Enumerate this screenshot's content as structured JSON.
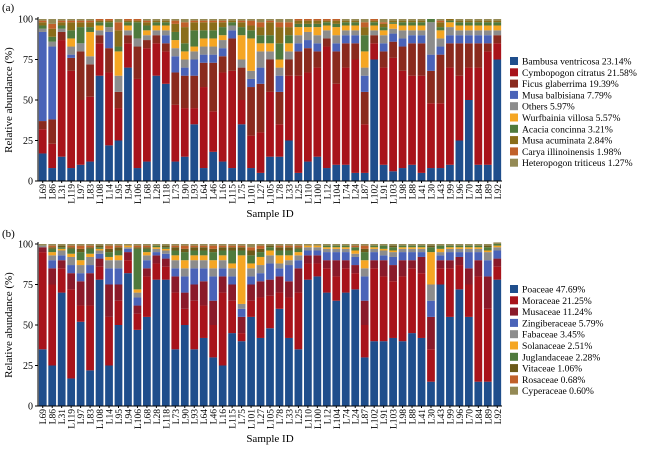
{
  "chart_data": [
    {
      "panel_label": "(a)",
      "type": "bar",
      "stacked": true,
      "xlabel": "Sample ID",
      "ylabel": "Relative abundance (%)",
      "ylim": [
        0,
        100
      ],
      "yticks": [
        0,
        25,
        50,
        75,
        100
      ],
      "legend_position": "right",
      "categories": [
        "L69",
        "L86",
        "L31",
        "L119",
        "L97",
        "L83",
        "L108",
        "L14",
        "L95",
        "L94",
        "L106",
        "L68",
        "L28",
        "L118",
        "L73",
        "L90",
        "L93",
        "L64",
        "L46",
        "L16",
        "L115",
        "L75",
        "L101",
        "L27",
        "L105",
        "L78",
        "L33",
        "L25",
        "L110",
        "L100",
        "L12",
        "L104",
        "L74",
        "L24",
        "L87",
        "L102",
        "L91",
        "L103",
        "L98",
        "L88",
        "L41",
        "L30",
        "L43",
        "L99",
        "L96",
        "L70",
        "L84",
        "L89",
        "L92"
      ],
      "series": [
        {
          "name": "Bambusa ventricosa 23.14%",
          "color": "#1f4e8c",
          "values": [
            17,
            8,
            15,
            8,
            10,
            12,
            65,
            22,
            25,
            70,
            8,
            12,
            65,
            60,
            12,
            15,
            35,
            8,
            18,
            12,
            8,
            35,
            8,
            5,
            15,
            15,
            25,
            5,
            12,
            15,
            8,
            10,
            10,
            5,
            5,
            75,
            10,
            6,
            8,
            10,
            5,
            8,
            8,
            10,
            25,
            50,
            10,
            10,
            75
          ]
        },
        {
          "name": "Cymbopogon citratus 21.58%",
          "color": "#a8131b",
          "values": [
            15,
            15,
            72,
            60,
            40,
            40,
            20,
            45,
            20,
            15,
            55,
            70,
            20,
            20,
            35,
            30,
            10,
            50,
            25,
            55,
            60,
            15,
            20,
            25,
            40,
            20,
            40,
            60,
            55,
            55,
            75,
            50,
            60,
            70,
            30,
            10,
            60,
            70,
            60,
            55,
            60,
            40,
            40,
            60,
            40,
            20,
            60,
            70,
            10
          ]
        },
        {
          "name": "Ficus glaberrima 19.39%",
          "color": "#8a2a1e",
          "values": [
            5,
            15,
            5,
            8,
            30,
            20,
            5,
            15,
            10,
            5,
            20,
            5,
            5,
            5,
            20,
            20,
            20,
            15,
            30,
            10,
            20,
            20,
            30,
            30,
            20,
            20,
            10,
            15,
            15,
            10,
            5,
            20,
            15,
            10,
            20,
            5,
            10,
            10,
            15,
            20,
            20,
            20,
            30,
            15,
            20,
            15,
            15,
            5,
            5
          ]
        },
        {
          "name": "Musa balbisiana 7.79%",
          "color": "#4a63b8",
          "values": [
            55,
            45,
            0,
            2,
            0,
            0,
            0,
            10,
            0,
            0,
            0,
            0,
            0,
            5,
            10,
            5,
            10,
            5,
            5,
            5,
            5,
            0,
            5,
            10,
            0,
            10,
            0,
            5,
            5,
            5,
            0,
            5,
            5,
            5,
            10,
            0,
            5,
            5,
            5,
            5,
            5,
            10,
            5,
            5,
            5,
            5,
            5,
            5,
            0
          ]
        },
        {
          "name": "Others 5.97%",
          "color": "#8c8c8c",
          "values": [
            2,
            3,
            2,
            5,
            5,
            5,
            3,
            3,
            10,
            3,
            5,
            3,
            3,
            3,
            5,
            5,
            5,
            5,
            5,
            5,
            3,
            5,
            5,
            10,
            5,
            5,
            5,
            5,
            5,
            5,
            5,
            5,
            3,
            3,
            5,
            3,
            5,
            3,
            5,
            3,
            3,
            20,
            5,
            5,
            3,
            3,
            3,
            3,
            3
          ]
        },
        {
          "name": "Wurfbainia villosa 5.57%",
          "color": "#f5a623",
          "values": [
            0,
            0,
            0,
            5,
            0,
            15,
            3,
            0,
            15,
            3,
            0,
            3,
            3,
            3,
            5,
            5,
            3,
            5,
            5,
            3,
            0,
            15,
            20,
            5,
            5,
            5,
            5,
            5,
            3,
            5,
            3,
            5,
            3,
            3,
            10,
            3,
            3,
            3,
            3,
            3,
            3,
            0,
            5,
            3,
            3,
            3,
            3,
            3,
            3
          ]
        },
        {
          "name": "Acacia concinna 3.21%",
          "color": "#4f7a3d",
          "values": [
            2,
            3,
            2,
            5,
            10,
            3,
            2,
            3,
            3,
            2,
            10,
            3,
            2,
            2,
            5,
            5,
            10,
            5,
            5,
            5,
            2,
            5,
            5,
            5,
            5,
            10,
            5,
            2,
            2,
            2,
            2,
            2,
            2,
            2,
            10,
            2,
            2,
            1,
            2,
            2,
            2,
            2,
            2,
            1,
            2,
            2,
            2,
            2,
            2
          ]
        },
        {
          "name": "Musa acuminata 2.84%",
          "color": "#8a6d1a",
          "values": [
            2,
            5,
            2,
            5,
            3,
            3,
            1,
            1,
            10,
            1,
            1,
            2,
            1,
            1,
            5,
            10,
            5,
            5,
            5,
            3,
            1,
            3,
            3,
            5,
            8,
            10,
            5,
            2,
            2,
            2,
            1,
            2,
            1,
            1,
            5,
            1,
            2,
            1,
            1,
            1,
            1,
            0,
            3,
            1,
            1,
            1,
            1,
            1,
            1
          ]
        },
        {
          "name": "Carya illinoinensis 1.98%",
          "color": "#c0602a",
          "values": [
            1,
            3,
            1,
            1,
            1,
            1,
            1,
            1,
            5,
            1,
            1,
            1,
            0,
            0,
            2,
            3,
            1,
            1,
            1,
            1,
            0,
            1,
            3,
            3,
            1,
            3,
            3,
            1,
            1,
            1,
            1,
            1,
            0,
            0,
            3,
            1,
            1,
            0,
            0,
            0,
            0,
            0,
            1,
            0,
            0,
            0,
            0,
            0,
            0
          ]
        },
        {
          "name": "Heteropogon triticeus 1.27%",
          "color": "#948a55",
          "values": [
            1,
            3,
            1,
            1,
            1,
            1,
            0,
            0,
            2,
            0,
            0,
            1,
            1,
            1,
            1,
            2,
            1,
            1,
            1,
            1,
            1,
            1,
            1,
            2,
            1,
            2,
            2,
            0,
            0,
            0,
            0,
            0,
            1,
            1,
            2,
            0,
            2,
            1,
            1,
            1,
            1,
            0,
            1,
            0,
            1,
            1,
            1,
            1,
            1
          ]
        }
      ]
    },
    {
      "panel_label": "(b)",
      "type": "bar",
      "stacked": true,
      "xlabel": "Sample ID",
      "ylabel": "Relative abundance (%)",
      "ylim": [
        0,
        100
      ],
      "yticks": [
        0,
        25,
        50,
        75,
        100
      ],
      "legend_position": "right",
      "categories": [
        "L69",
        "L86",
        "L31",
        "L119",
        "L97",
        "L83",
        "L108",
        "L14",
        "L95",
        "L94",
        "L106",
        "L68",
        "L28",
        "L118",
        "L73",
        "L90",
        "L93",
        "L64",
        "L46",
        "L16",
        "L115",
        "L75",
        "L101",
        "L27",
        "L105",
        "L78",
        "L33",
        "L25",
        "L110",
        "L100",
        "L12",
        "L104",
        "L74",
        "L24",
        "L87",
        "L102",
        "L91",
        "L103",
        "L98",
        "L88",
        "L41",
        "L30",
        "L43",
        "L99",
        "L96",
        "L70",
        "L84",
        "L89",
        "L92"
      ],
      "series": [
        {
          "name": "Poaceae 47.69%",
          "color": "#1f4e8c",
          "values": [
            35,
            25,
            70,
            17,
            52,
            22,
            78,
            25,
            50,
            82,
            47,
            55,
            78,
            78,
            35,
            50,
            35,
            42,
            30,
            25,
            45,
            40,
            55,
            42,
            48,
            60,
            42,
            35,
            78,
            80,
            70,
            65,
            70,
            72,
            30,
            40,
            40,
            42,
            40,
            45,
            42,
            15,
            75,
            55,
            72,
            55,
            15,
            15,
            78
          ]
        },
        {
          "name": "Moraceae 21.25%",
          "color": "#a8131b",
          "values": [
            60,
            50,
            15,
            55,
            10,
            40,
            8,
            30,
            15,
            8,
            10,
            25,
            10,
            8,
            35,
            10,
            30,
            20,
            20,
            45,
            20,
            5,
            10,
            25,
            20,
            10,
            25,
            35,
            10,
            8,
            15,
            15,
            15,
            10,
            20,
            45,
            40,
            35,
            40,
            40,
            40,
            20,
            10,
            30,
            15,
            20,
            65,
            45,
            8
          ]
        },
        {
          "name": "Musaceae 11.24%",
          "color": "#8a1a2a",
          "values": [
            3,
            10,
            5,
            10,
            15,
            20,
            5,
            20,
            10,
            5,
            5,
            5,
            5,
            5,
            10,
            10,
            10,
            15,
            15,
            10,
            10,
            10,
            10,
            10,
            10,
            10,
            10,
            15,
            5,
            5,
            5,
            10,
            5,
            5,
            15,
            5,
            10,
            10,
            10,
            5,
            10,
            20,
            5,
            5,
            5,
            10,
            10,
            20,
            5
          ]
        },
        {
          "name": "Zingiberaceae 5.79%",
          "color": "#4a63b8",
          "values": [
            0,
            5,
            3,
            5,
            5,
            5,
            3,
            10,
            10,
            2,
            5,
            5,
            2,
            3,
            5,
            10,
            10,
            8,
            15,
            5,
            5,
            5,
            5,
            5,
            10,
            5,
            10,
            5,
            3,
            3,
            5,
            5,
            5,
            5,
            15,
            5,
            3,
            5,
            5,
            5,
            3,
            10,
            3,
            5,
            3,
            10,
            5,
            10,
            5
          ]
        },
        {
          "name": "Fabaceae 3.45%",
          "color": "#8c8c8c",
          "values": [
            1,
            3,
            3,
            5,
            5,
            5,
            2,
            5,
            5,
            1,
            3,
            3,
            2,
            2,
            5,
            5,
            5,
            5,
            5,
            5,
            5,
            3,
            5,
            5,
            5,
            3,
            3,
            3,
            2,
            2,
            2,
            2,
            2,
            2,
            5,
            2,
            3,
            3,
            2,
            2,
            2,
            10,
            2,
            2,
            2,
            2,
            2,
            5,
            2
          ]
        },
        {
          "name": "Solanaceae 2.51%",
          "color": "#f5a623",
          "values": [
            0,
            2,
            1,
            2,
            3,
            2,
            1,
            2,
            3,
            1,
            2,
            2,
            1,
            1,
            3,
            5,
            3,
            3,
            5,
            3,
            3,
            30,
            3,
            5,
            3,
            5,
            3,
            2,
            1,
            1,
            1,
            1,
            1,
            2,
            5,
            1,
            1,
            1,
            1,
            1,
            1,
            20,
            2,
            1,
            1,
            1,
            1,
            1,
            1
          ]
        },
        {
          "name": "Juglandaceae 2.28%",
          "color": "#4f7a3d",
          "values": [
            0,
            2,
            1,
            3,
            5,
            3,
            1,
            3,
            3,
            0,
            25,
            2,
            1,
            1,
            3,
            5,
            3,
            3,
            5,
            3,
            8,
            3,
            5,
            3,
            2,
            3,
            3,
            2,
            0,
            0,
            1,
            1,
            1,
            2,
            5,
            1,
            2,
            2,
            1,
            1,
            1,
            3,
            2,
            1,
            1,
            1,
            1,
            2,
            1
          ]
        },
        {
          "name": "Vitaceae 1.06%",
          "color": "#6b5a1a",
          "values": [
            0,
            1,
            1,
            1,
            2,
            1,
            1,
            2,
            2,
            0,
            1,
            1,
            0,
            1,
            2,
            2,
            2,
            2,
            2,
            2,
            2,
            2,
            3,
            2,
            1,
            2,
            2,
            1,
            0,
            0,
            0,
            0,
            0,
            0,
            2,
            0,
            0,
            1,
            0,
            0,
            0,
            1,
            0,
            0,
            0,
            0,
            0,
            1,
            0
          ]
        },
        {
          "name": "Rosaceae 0.68%",
          "color": "#c0602a",
          "values": [
            0,
            1,
            0,
            1,
            2,
            1,
            0,
            2,
            1,
            0,
            1,
            1,
            0,
            0,
            1,
            2,
            1,
            1,
            2,
            1,
            1,
            1,
            2,
            2,
            0,
            1,
            1,
            1,
            0,
            0,
            0,
            0,
            0,
            1,
            2,
            0,
            0,
            0,
            0,
            0,
            0,
            0,
            0,
            0,
            0,
            0,
            0,
            0,
            0
          ]
        },
        {
          "name": "Cyperaceae 0.60%",
          "color": "#948a55",
          "values": [
            1,
            1,
            1,
            1,
            1,
            1,
            1,
            1,
            1,
            1,
            1,
            1,
            1,
            1,
            1,
            1,
            1,
            1,
            1,
            1,
            1,
            1,
            2,
            1,
            1,
            1,
            1,
            1,
            1,
            1,
            1,
            1,
            1,
            1,
            1,
            1,
            1,
            1,
            1,
            1,
            1,
            1,
            1,
            1,
            1,
            1,
            1,
            1,
            1
          ]
        }
      ]
    }
  ]
}
